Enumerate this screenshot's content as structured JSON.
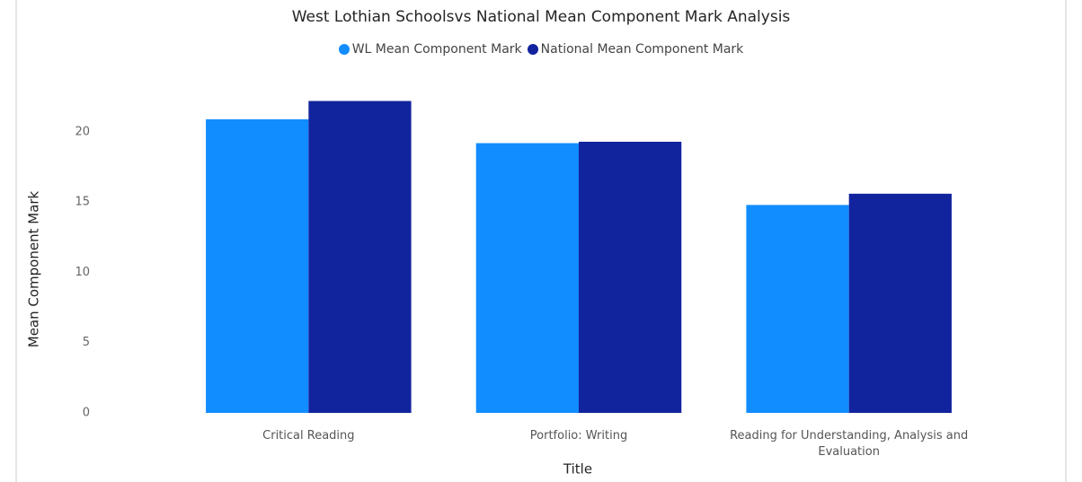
{
  "chart_data": {
    "type": "bar",
    "title": "West Lothian Schoolsvs National Mean Component Mark Analysis",
    "x_label": "Title",
    "y_label": "Mean Component Mark",
    "categories": [
      "Critical Reading",
      "Portfolio: Writing",
      "Reading for Understanding, Analysis and Evaluation"
    ],
    "series": [
      {
        "name": "WL Mean Component Mark",
        "color": "#118dff",
        "values": [
          20.9,
          19.2,
          14.8
        ]
      },
      {
        "name": "National Mean Component Mark",
        "color": "#12239e",
        "values": [
          22.2,
          19.3,
          15.6
        ]
      }
    ],
    "ylim": [
      0,
      23
    ],
    "yticks": [
      0,
      5,
      10,
      15,
      20
    ],
    "grid": false
  }
}
